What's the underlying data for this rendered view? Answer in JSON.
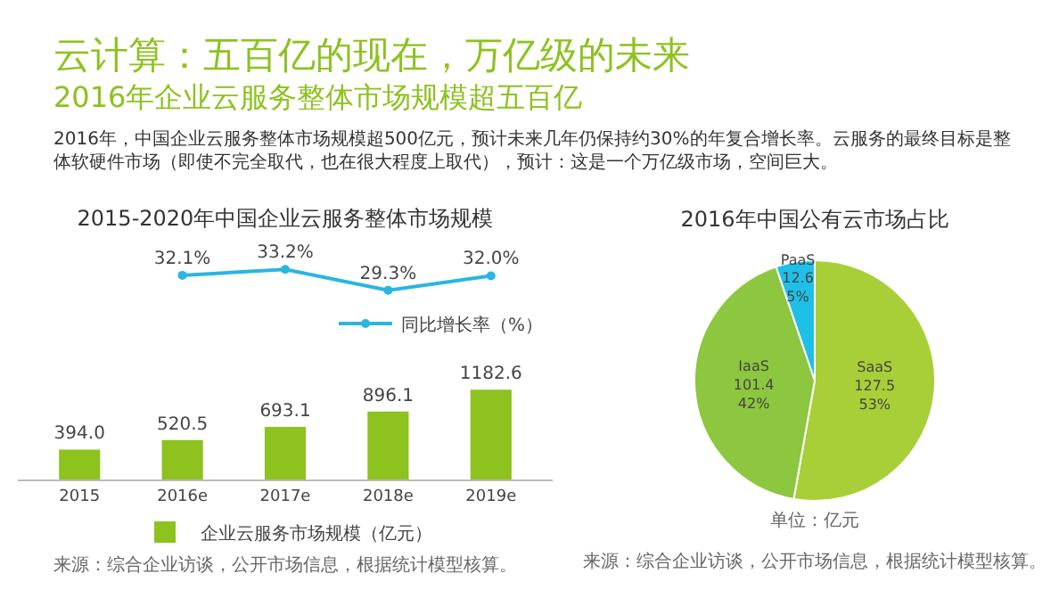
{
  "chart_data": [
    {
      "type": "other",
      "title": "云计算：五百亿的现在，万亿级的未来",
      "subtitle": "2016年企业云服务整体市场规模超五百亿",
      "annotations": [
        "2016年，中国企业云服务整体市场规模超500亿元，预计未来几年仍保持约30%的年复合增长率。云服务的最终目标是整体软硬件市场（即使不完全取代，也在很大程度上取代），预计：这是一个万亿级市场，空间巨大。"
      ]
    },
    {
      "type": "line",
      "title": "2015-2020年中国企业云服务整体市场规模",
      "categories": [
        null,
        null,
        null,
        null,
        null
      ],
      "series": [
        {
          "name": "同比增长率（%）",
          "color": "#29b6e0",
          "values": [
            null,
            32.1,
            33.2,
            29.3,
            32.0
          ],
          "value_labels": [
            null,
            "32.1%",
            "33.2%",
            "29.3%",
            "32.0%"
          ]
        }
      ],
      "marker": "circle",
      "tick_labels": false,
      "legend": "bottom right"
    },
    {
      "type": "bar",
      "categories": [
        "2015",
        "2016e",
        "2017e",
        "2018e",
        "2019e"
      ],
      "series": [
        {
          "name": "企业云服务市场规模（亿元）",
          "color": "#8dc21f",
          "values": [
            394.0,
            520.5,
            693.1,
            896.1,
            1182.6
          ],
          "value_labels": [
            "394.0",
            "520.5",
            "693.1",
            "896.1",
            "1182.6"
          ]
        }
      ],
      "tick_labels": "x",
      "legend": "bottom",
      "annotations": [
        "来源：综合企业访谈，公开市场信息，根据统计模型核算。"
      ]
    },
    {
      "type": "pie",
      "title": "2016年中国公有云市场占比",
      "categories": [
        "SaaS",
        "IaaS",
        "PaaS"
      ],
      "values": [
        127.5,
        101.4,
        12.6
      ],
      "colors": [
        "#a9cf38",
        "#8dc63f",
        "#1fc0e8"
      ],
      "value_labels": [
        "127.5\n53%",
        "101.4\n42%",
        "12.6\n5%"
      ],
      "annotations": [
        "单位：亿元",
        "来源：综合企业访谈，公开市场信息，根据统计模型核算。"
      ]
    }
  ]
}
